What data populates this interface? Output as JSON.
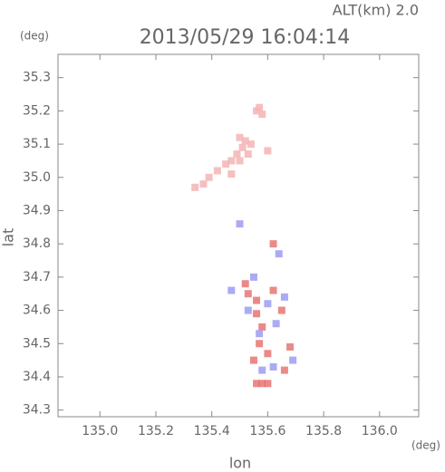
{
  "chart_data": {
    "type": "scatter",
    "header": "ALT(km) 2.0",
    "title": "2013/05/29 16:04:14",
    "y_unit": "(deg)",
    "x_unit": "(deg)",
    "x_label": "lon",
    "y_label": "lat",
    "xlim": [
      134.85,
      136.14
    ],
    "ylim": [
      34.28,
      35.37
    ],
    "xticks": [
      {
        "value": 135,
        "label": "135.0"
      },
      135.2,
      135.4,
      135.6,
      135.8,
      {
        "value": 136,
        "label": "136.0"
      }
    ],
    "yticks": [
      34.3,
      34.4,
      34.5,
      34.6,
      34.7,
      34.8,
      34.9,
      {
        "value": 35,
        "label": "35.0"
      },
      35.1,
      35.2,
      35.3
    ],
    "series": [
      {
        "color": "#f4b4b4",
        "x": [
          135.34,
          135.37,
          135.39,
          135.42,
          135.45,
          135.47,
          135.49,
          135.51,
          135.52,
          135.54,
          135.53,
          135.5,
          135.56,
          135.57,
          135.58,
          135.6,
          135.47,
          135.5
        ],
        "y": [
          34.97,
          34.98,
          35.0,
          35.02,
          35.04,
          35.05,
          35.07,
          35.09,
          35.11,
          35.1,
          35.07,
          35.05,
          35.2,
          35.21,
          35.19,
          35.08,
          35.01,
          35.12
        ]
      },
      {
        "color": "#e87474",
        "x": [
          135.56,
          135.58,
          135.6,
          135.52,
          135.56,
          135.62,
          135.65,
          135.58,
          135.57,
          135.6,
          135.55,
          135.66,
          135.53,
          135.68,
          135.62,
          135.56
        ],
        "y": [
          34.38,
          34.38,
          34.38,
          34.68,
          34.63,
          34.66,
          34.6,
          34.55,
          34.5,
          34.47,
          34.45,
          34.42,
          34.65,
          34.49,
          34.8,
          34.59
        ]
      },
      {
        "color": "#9c9cf2",
        "x": [
          135.55,
          135.6,
          135.66,
          135.63,
          135.58,
          135.69,
          135.53,
          135.5,
          135.64,
          135.57,
          135.62,
          135.47
        ],
        "y": [
          34.7,
          34.62,
          34.64,
          34.56,
          34.42,
          34.45,
          34.6,
          34.86,
          34.77,
          34.53,
          34.43,
          34.66
        ]
      }
    ]
  }
}
